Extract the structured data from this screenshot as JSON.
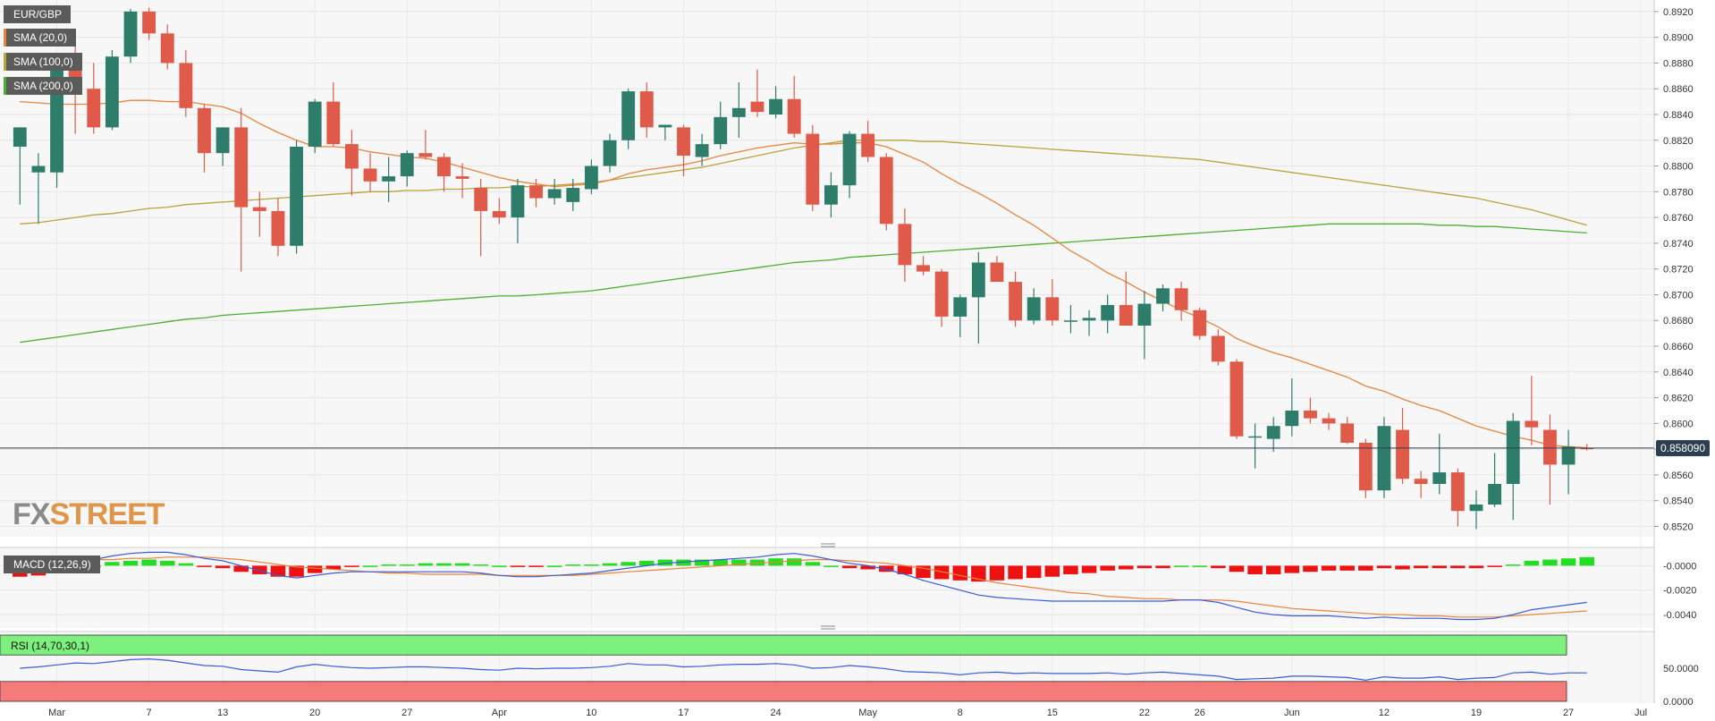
{
  "symbol": "EUR/GBP",
  "indicators": {
    "sma20": "SMA (20,0)",
    "sma100": "SMA (100,0)",
    "sma200": "SMA (200,0)",
    "macd": "MACD (12,26,9)",
    "rsi": "RSI (14,70,30,1)"
  },
  "watermark": {
    "fx": "FX",
    "street": "STREET"
  },
  "last_price_label": "0.858090",
  "colors": {
    "up": "#2e7d6b",
    "down": "#e05a4a",
    "sma20": "#e8833a",
    "sma100": "#b8a43a",
    "sma200": "#4caf2e",
    "macd_line": "#3a5bd9",
    "signal_line": "#e8833a",
    "hist_pos": "#22dd22",
    "hist_neg": "#ee1111",
    "rsi_line": "#3a5bd9",
    "rsi_overbought": "#7ef07e",
    "rsi_oversold": "#f57a7a"
  },
  "chart_data": {
    "type": "candlestick",
    "price_axis": {
      "ticks": [
        "0.8920",
        "0.8900",
        "0.8880",
        "0.8860",
        "0.8840",
        "0.8820",
        "0.8800",
        "0.8780",
        "0.8760",
        "0.8740",
        "0.8720",
        "0.8700",
        "0.8680",
        "0.8660",
        "0.8640",
        "0.8620",
        "0.8600",
        "0.8580",
        "0.8560",
        "0.8540",
        "0.8520"
      ],
      "ylim": [
        0.8512,
        0.8922
      ]
    },
    "x_axis": {
      "labels": [
        "Mar",
        "7",
        "13",
        "20",
        "27",
        "Apr",
        "10",
        "17",
        "24",
        "May",
        "8",
        "15",
        "22",
        "26",
        "Jun",
        "12",
        "19",
        "27",
        "Jul"
      ]
    },
    "last_price": 0.85809,
    "candles": [
      {
        "o": 0.8815,
        "h": 0.883,
        "l": 0.877,
        "c": 0.883
      },
      {
        "o": 0.8795,
        "h": 0.881,
        "l": 0.8755,
        "c": 0.88
      },
      {
        "o": 0.8795,
        "h": 0.8885,
        "l": 0.8783,
        "c": 0.888
      },
      {
        "o": 0.888,
        "h": 0.8893,
        "l": 0.8825,
        "c": 0.886
      },
      {
        "o": 0.886,
        "h": 0.888,
        "l": 0.8825,
        "c": 0.883
      },
      {
        "o": 0.883,
        "h": 0.889,
        "l": 0.8828,
        "c": 0.8885
      },
      {
        "o": 0.8885,
        "h": 0.8922,
        "l": 0.888,
        "c": 0.892
      },
      {
        "o": 0.892,
        "h": 0.8923,
        "l": 0.8898,
        "c": 0.8903
      },
      {
        "o": 0.8903,
        "h": 0.891,
        "l": 0.8875,
        "c": 0.888
      },
      {
        "o": 0.888,
        "h": 0.889,
        "l": 0.8838,
        "c": 0.8845
      },
      {
        "o": 0.8845,
        "h": 0.8848,
        "l": 0.8795,
        "c": 0.881
      },
      {
        "o": 0.881,
        "h": 0.883,
        "l": 0.88,
        "c": 0.883
      },
      {
        "o": 0.883,
        "h": 0.8845,
        "l": 0.8718,
        "c": 0.8768
      },
      {
        "o": 0.8768,
        "h": 0.878,
        "l": 0.8745,
        "c": 0.8765
      },
      {
        "o": 0.8765,
        "h": 0.8775,
        "l": 0.873,
        "c": 0.8738
      },
      {
        "o": 0.8738,
        "h": 0.882,
        "l": 0.8732,
        "c": 0.8815
      },
      {
        "o": 0.8815,
        "h": 0.8852,
        "l": 0.881,
        "c": 0.885
      },
      {
        "o": 0.885,
        "h": 0.8865,
        "l": 0.8815,
        "c": 0.8817
      },
      {
        "o": 0.8817,
        "h": 0.8828,
        "l": 0.8777,
        "c": 0.8798
      },
      {
        "o": 0.8798,
        "h": 0.881,
        "l": 0.878,
        "c": 0.8788
      },
      {
        "o": 0.8788,
        "h": 0.8807,
        "l": 0.8772,
        "c": 0.8792
      },
      {
        "o": 0.8792,
        "h": 0.8812,
        "l": 0.8784,
        "c": 0.881
      },
      {
        "o": 0.881,
        "h": 0.8828,
        "l": 0.8805,
        "c": 0.8807
      },
      {
        "o": 0.8807,
        "h": 0.881,
        "l": 0.878,
        "c": 0.8792
      },
      {
        "o": 0.8792,
        "h": 0.8802,
        "l": 0.8775,
        "c": 0.879
      },
      {
        "o": 0.8783,
        "h": 0.879,
        "l": 0.873,
        "c": 0.8765
      },
      {
        "o": 0.8765,
        "h": 0.8775,
        "l": 0.8755,
        "c": 0.876
      },
      {
        "o": 0.876,
        "h": 0.879,
        "l": 0.874,
        "c": 0.8785
      },
      {
        "o": 0.8785,
        "h": 0.879,
        "l": 0.8768,
        "c": 0.8775
      },
      {
        "o": 0.8775,
        "h": 0.879,
        "l": 0.877,
        "c": 0.8782
      },
      {
        "o": 0.8772,
        "h": 0.879,
        "l": 0.8765,
        "c": 0.8783
      },
      {
        "o": 0.8782,
        "h": 0.8805,
        "l": 0.8778,
        "c": 0.88
      },
      {
        "o": 0.88,
        "h": 0.8825,
        "l": 0.8795,
        "c": 0.882
      },
      {
        "o": 0.882,
        "h": 0.886,
        "l": 0.8813,
        "c": 0.8858
      },
      {
        "o": 0.8858,
        "h": 0.8865,
        "l": 0.8822,
        "c": 0.883
      },
      {
        "o": 0.883,
        "h": 0.8832,
        "l": 0.882,
        "c": 0.8832
      },
      {
        "o": 0.883,
        "h": 0.8832,
        "l": 0.8792,
        "c": 0.8808
      },
      {
        "o": 0.8807,
        "h": 0.8825,
        "l": 0.88,
        "c": 0.8817
      },
      {
        "o": 0.8817,
        "h": 0.885,
        "l": 0.8813,
        "c": 0.8838
      },
      {
        "o": 0.8838,
        "h": 0.8865,
        "l": 0.8822,
        "c": 0.8845
      },
      {
        "o": 0.885,
        "h": 0.8875,
        "l": 0.8838,
        "c": 0.8842
      },
      {
        "o": 0.884,
        "h": 0.8862,
        "l": 0.8837,
        "c": 0.8852
      },
      {
        "o": 0.8852,
        "h": 0.887,
        "l": 0.8822,
        "c": 0.8825
      },
      {
        "o": 0.8825,
        "h": 0.8832,
        "l": 0.8765,
        "c": 0.877
      },
      {
        "o": 0.877,
        "h": 0.8795,
        "l": 0.876,
        "c": 0.8785
      },
      {
        "o": 0.8785,
        "h": 0.8827,
        "l": 0.8775,
        "c": 0.8825
      },
      {
        "o": 0.8825,
        "h": 0.8835,
        "l": 0.8803,
        "c": 0.8807
      },
      {
        "o": 0.8807,
        "h": 0.881,
        "l": 0.875,
        "c": 0.8755
      },
      {
        "o": 0.8755,
        "h": 0.8767,
        "l": 0.871,
        "c": 0.8723
      },
      {
        "o": 0.8723,
        "h": 0.873,
        "l": 0.8715,
        "c": 0.8718
      },
      {
        "o": 0.8718,
        "h": 0.872,
        "l": 0.8675,
        "c": 0.8683
      },
      {
        "o": 0.8683,
        "h": 0.87,
        "l": 0.8667,
        "c": 0.8698
      },
      {
        "o": 0.8698,
        "h": 0.8733,
        "l": 0.8662,
        "c": 0.8725
      },
      {
        "o": 0.8725,
        "h": 0.873,
        "l": 0.8712,
        "c": 0.871
      },
      {
        "o": 0.871,
        "h": 0.8718,
        "l": 0.8675,
        "c": 0.868
      },
      {
        "o": 0.868,
        "h": 0.8705,
        "l": 0.8677,
        "c": 0.8698
      },
      {
        "o": 0.8698,
        "h": 0.8712,
        "l": 0.8676,
        "c": 0.868
      },
      {
        "o": 0.868,
        "h": 0.8692,
        "l": 0.867,
        "c": 0.868
      },
      {
        "o": 0.868,
        "h": 0.8688,
        "l": 0.8668,
        "c": 0.8682
      },
      {
        "o": 0.868,
        "h": 0.87,
        "l": 0.867,
        "c": 0.8692
      },
      {
        "o": 0.8692,
        "h": 0.8718,
        "l": 0.8676,
        "c": 0.8676
      },
      {
        "o": 0.8676,
        "h": 0.8703,
        "l": 0.865,
        "c": 0.8693
      },
      {
        "o": 0.8693,
        "h": 0.8708,
        "l": 0.8687,
        "c": 0.8705
      },
      {
        "o": 0.8705,
        "h": 0.871,
        "l": 0.868,
        "c": 0.8688
      },
      {
        "o": 0.8688,
        "h": 0.869,
        "l": 0.8665,
        "c": 0.8668
      },
      {
        "o": 0.8668,
        "h": 0.8673,
        "l": 0.8645,
        "c": 0.8648
      },
      {
        "o": 0.8648,
        "h": 0.865,
        "l": 0.8588,
        "c": 0.859
      },
      {
        "o": 0.859,
        "h": 0.86,
        "l": 0.8565,
        "c": 0.859
      },
      {
        "o": 0.8588,
        "h": 0.8605,
        "l": 0.8578,
        "c": 0.8598
      },
      {
        "o": 0.8598,
        "h": 0.8635,
        "l": 0.859,
        "c": 0.861
      },
      {
        "o": 0.861,
        "h": 0.862,
        "l": 0.86,
        "c": 0.8604
      },
      {
        "o": 0.8604,
        "h": 0.8608,
        "l": 0.8595,
        "c": 0.86
      },
      {
        "o": 0.86,
        "h": 0.8605,
        "l": 0.8584,
        "c": 0.8585
      },
      {
        "o": 0.8585,
        "h": 0.8588,
        "l": 0.8542,
        "c": 0.8548
      },
      {
        "o": 0.8548,
        "h": 0.8605,
        "l": 0.8542,
        "c": 0.8598
      },
      {
        "o": 0.8595,
        "h": 0.8612,
        "l": 0.8553,
        "c": 0.8557
      },
      {
        "o": 0.8557,
        "h": 0.8563,
        "l": 0.8542,
        "c": 0.8553
      },
      {
        "o": 0.8553,
        "h": 0.8592,
        "l": 0.8545,
        "c": 0.8562
      },
      {
        "o": 0.8562,
        "h": 0.8565,
        "l": 0.852,
        "c": 0.8532
      },
      {
        "o": 0.8532,
        "h": 0.8548,
        "l": 0.8518,
        "c": 0.8537
      },
      {
        "o": 0.8537,
        "h": 0.8577,
        "l": 0.8535,
        "c": 0.8553
      },
      {
        "o": 0.8553,
        "h": 0.8608,
        "l": 0.8525,
        "c": 0.8602
      },
      {
        "o": 0.8602,
        "h": 0.8637,
        "l": 0.8583,
        "c": 0.8597
      },
      {
        "o": 0.8595,
        "h": 0.8607,
        "l": 0.8537,
        "c": 0.8568
      },
      {
        "o": 0.8568,
        "h": 0.8595,
        "l": 0.8545,
        "c": 0.8582
      },
      {
        "o": 0.8581,
        "h": 0.8584,
        "l": 0.8579,
        "c": 0.85809
      }
    ],
    "sma20": [
      0.885,
      0.8849,
      0.8848,
      0.8848,
      0.8848,
      0.8849,
      0.8851,
      0.8851,
      0.885,
      0.885,
      0.8848,
      0.8846,
      0.8841,
      0.8833,
      0.8826,
      0.882,
      0.8815,
      0.8815,
      0.8814,
      0.8811,
      0.8809,
      0.8807,
      0.8806,
      0.8803,
      0.8799,
      0.8795,
      0.8791,
      0.8788,
      0.8786,
      0.8784,
      0.8785,
      0.8786,
      0.8789,
      0.8794,
      0.8797,
      0.8799,
      0.8801,
      0.8804,
      0.8808,
      0.8811,
      0.8814,
      0.8816,
      0.8818,
      0.8817,
      0.8817,
      0.8818,
      0.8818,
      0.8815,
      0.8809,
      0.8803,
      0.8794,
      0.8786,
      0.8779,
      0.8771,
      0.8762,
      0.8754,
      0.8744,
      0.8734,
      0.8726,
      0.8717,
      0.871,
      0.8702,
      0.8695,
      0.8688,
      0.8682,
      0.8675,
      0.8666,
      0.866,
      0.8655,
      0.8651,
      0.8646,
      0.8641,
      0.8636,
      0.8629,
      0.8625,
      0.8619,
      0.8614,
      0.861,
      0.8604,
      0.8598,
      0.8594,
      0.859,
      0.8587,
      0.8583,
      0.8582,
      0.8581
    ],
    "sma100": [
      0.8755,
      0.8756,
      0.8758,
      0.876,
      0.8762,
      0.8763,
      0.8765,
      0.8767,
      0.8768,
      0.877,
      0.8771,
      0.8772,
      0.8773,
      0.8774,
      0.8775,
      0.8776,
      0.8777,
      0.8778,
      0.8779,
      0.878,
      0.878,
      0.8781,
      0.8781,
      0.8782,
      0.8782,
      0.8783,
      0.8783,
      0.8784,
      0.8784,
      0.8785,
      0.8786,
      0.8787,
      0.8789,
      0.8791,
      0.8793,
      0.8795,
      0.8797,
      0.8799,
      0.8802,
      0.8805,
      0.8808,
      0.8811,
      0.8814,
      0.8816,
      0.8818,
      0.882,
      0.882,
      0.882,
      0.882,
      0.8819,
      0.8819,
      0.8818,
      0.8817,
      0.8816,
      0.8815,
      0.8814,
      0.8813,
      0.8812,
      0.8811,
      0.881,
      0.8809,
      0.8808,
      0.8807,
      0.8806,
      0.8805,
      0.8803,
      0.8801,
      0.8799,
      0.8797,
      0.8795,
      0.8793,
      0.8791,
      0.8789,
      0.8787,
      0.8785,
      0.8783,
      0.8781,
      0.8779,
      0.8777,
      0.8775,
      0.8772,
      0.8769,
      0.8766,
      0.8762,
      0.8758,
      0.8754
    ],
    "sma200": [
      0.8663,
      0.8665,
      0.8667,
      0.8669,
      0.8671,
      0.8673,
      0.8675,
      0.8677,
      0.8679,
      0.8681,
      0.8682,
      0.8684,
      0.8685,
      0.8686,
      0.8687,
      0.8688,
      0.8689,
      0.869,
      0.8691,
      0.8692,
      0.8693,
      0.8694,
      0.8695,
      0.8696,
      0.8697,
      0.8698,
      0.8699,
      0.8699,
      0.87,
      0.8701,
      0.8702,
      0.8703,
      0.8705,
      0.8707,
      0.8709,
      0.8711,
      0.8713,
      0.8715,
      0.8717,
      0.8719,
      0.8721,
      0.8723,
      0.8725,
      0.8726,
      0.8727,
      0.8729,
      0.873,
      0.8731,
      0.8732,
      0.8733,
      0.8734,
      0.8735,
      0.8736,
      0.8737,
      0.8738,
      0.8739,
      0.874,
      0.8741,
      0.8742,
      0.8743,
      0.8744,
      0.8745,
      0.8746,
      0.8747,
      0.8748,
      0.8749,
      0.875,
      0.8751,
      0.8752,
      0.8753,
      0.8754,
      0.8755,
      0.8755,
      0.8755,
      0.8755,
      0.8755,
      0.8755,
      0.8754,
      0.8754,
      0.8753,
      0.8753,
      0.8752,
      0.8751,
      0.875,
      0.8749,
      0.8748
    ],
    "macd": {
      "ticks": [
        "-0.0000",
        "-0.0020",
        "-0.0040"
      ],
      "ylim": [
        -0.0048,
        0.0012
      ],
      "macd_line": [
        -0.0003,
        -0.0002,
        0.0,
        0.0003,
        0.0005,
        0.0008,
        0.001,
        0.0011,
        0.0011,
        0.0009,
        0.0006,
        0.0004,
        0.0,
        -0.0004,
        -0.0008,
        -0.001,
        -0.0008,
        -0.0006,
        -0.0005,
        -0.0005,
        -0.0005,
        -0.0005,
        -0.0005,
        -0.0005,
        -0.0005,
        -0.0006,
        -0.0008,
        -0.0009,
        -0.0009,
        -0.0008,
        -0.0007,
        -0.0006,
        -0.0004,
        -0.0002,
        0.0,
        0.0002,
        0.0003,
        0.0004,
        0.0005,
        0.0006,
        0.0007,
        0.0009,
        0.001,
        0.0008,
        0.0005,
        0.0002,
        0.0,
        -0.0003,
        -0.0007,
        -0.0012,
        -0.0016,
        -0.002,
        -0.0024,
        -0.0026,
        -0.0027,
        -0.0028,
        -0.0029,
        -0.0029,
        -0.0029,
        -0.0029,
        -0.0029,
        -0.0029,
        -0.0029,
        -0.0028,
        -0.0028,
        -0.003,
        -0.0034,
        -0.0038,
        -0.004,
        -0.0041,
        -0.0041,
        -0.0041,
        -0.0042,
        -0.0043,
        -0.0042,
        -0.0043,
        -0.0043,
        -0.0043,
        -0.0044,
        -0.0044,
        -0.0043,
        -0.004,
        -0.0036,
        -0.0034,
        -0.0032,
        -0.003
      ],
      "signal_line": [
        0.0006,
        0.0006,
        0.0005,
        0.0005,
        0.0005,
        0.0005,
        0.0006,
        0.0006,
        0.0007,
        0.0007,
        0.0007,
        0.0006,
        0.0005,
        0.0003,
        0.0001,
        -0.0001,
        -0.0002,
        -0.0003,
        -0.0004,
        -0.0005,
        -0.0006,
        -0.0006,
        -0.0007,
        -0.0007,
        -0.0007,
        -0.0007,
        -0.0008,
        -0.0008,
        -0.0008,
        -0.0008,
        -0.0008,
        -0.0007,
        -0.0006,
        -0.0005,
        -0.0004,
        -0.0003,
        -0.0002,
        -0.0001,
        0.0,
        0.0001,
        0.0002,
        0.0003,
        0.0004,
        0.0005,
        0.0005,
        0.0004,
        0.0003,
        0.0002,
        0.0,
        -0.0002,
        -0.0005,
        -0.0008,
        -0.0011,
        -0.0014,
        -0.0016,
        -0.0018,
        -0.002,
        -0.0022,
        -0.0023,
        -0.0025,
        -0.0026,
        -0.0027,
        -0.0027,
        -0.0028,
        -0.0028,
        -0.0028,
        -0.0029,
        -0.0031,
        -0.0033,
        -0.0035,
        -0.0036,
        -0.0037,
        -0.0038,
        -0.0039,
        -0.004,
        -0.004,
        -0.0041,
        -0.0041,
        -0.0042,
        -0.0042,
        -0.0042,
        -0.0041,
        -0.004,
        -0.0039,
        -0.0038,
        -0.0037
      ]
    },
    "rsi": {
      "ticks": [
        "50.0000",
        "0.0000"
      ],
      "ylim": [
        0,
        100
      ],
      "overbought": 70,
      "oversold": 30,
      "values": [
        50,
        52,
        55,
        58,
        57,
        60,
        63,
        64,
        62,
        58,
        54,
        53,
        48,
        46,
        44,
        52,
        56,
        53,
        51,
        50,
        51,
        52,
        52,
        51,
        50,
        48,
        47,
        50,
        49,
        50,
        50,
        51,
        53,
        57,
        55,
        55,
        52,
        53,
        55,
        56,
        56,
        57,
        55,
        50,
        51,
        54,
        52,
        49,
        45,
        44,
        43,
        40,
        43,
        44,
        42,
        43,
        42,
        42,
        42,
        43,
        41,
        43,
        44,
        42,
        40,
        38,
        33,
        34,
        35,
        38,
        38,
        37,
        36,
        32,
        37,
        35,
        35,
        37,
        33,
        35,
        36,
        43,
        44,
        41,
        43,
        43
      ]
    }
  }
}
